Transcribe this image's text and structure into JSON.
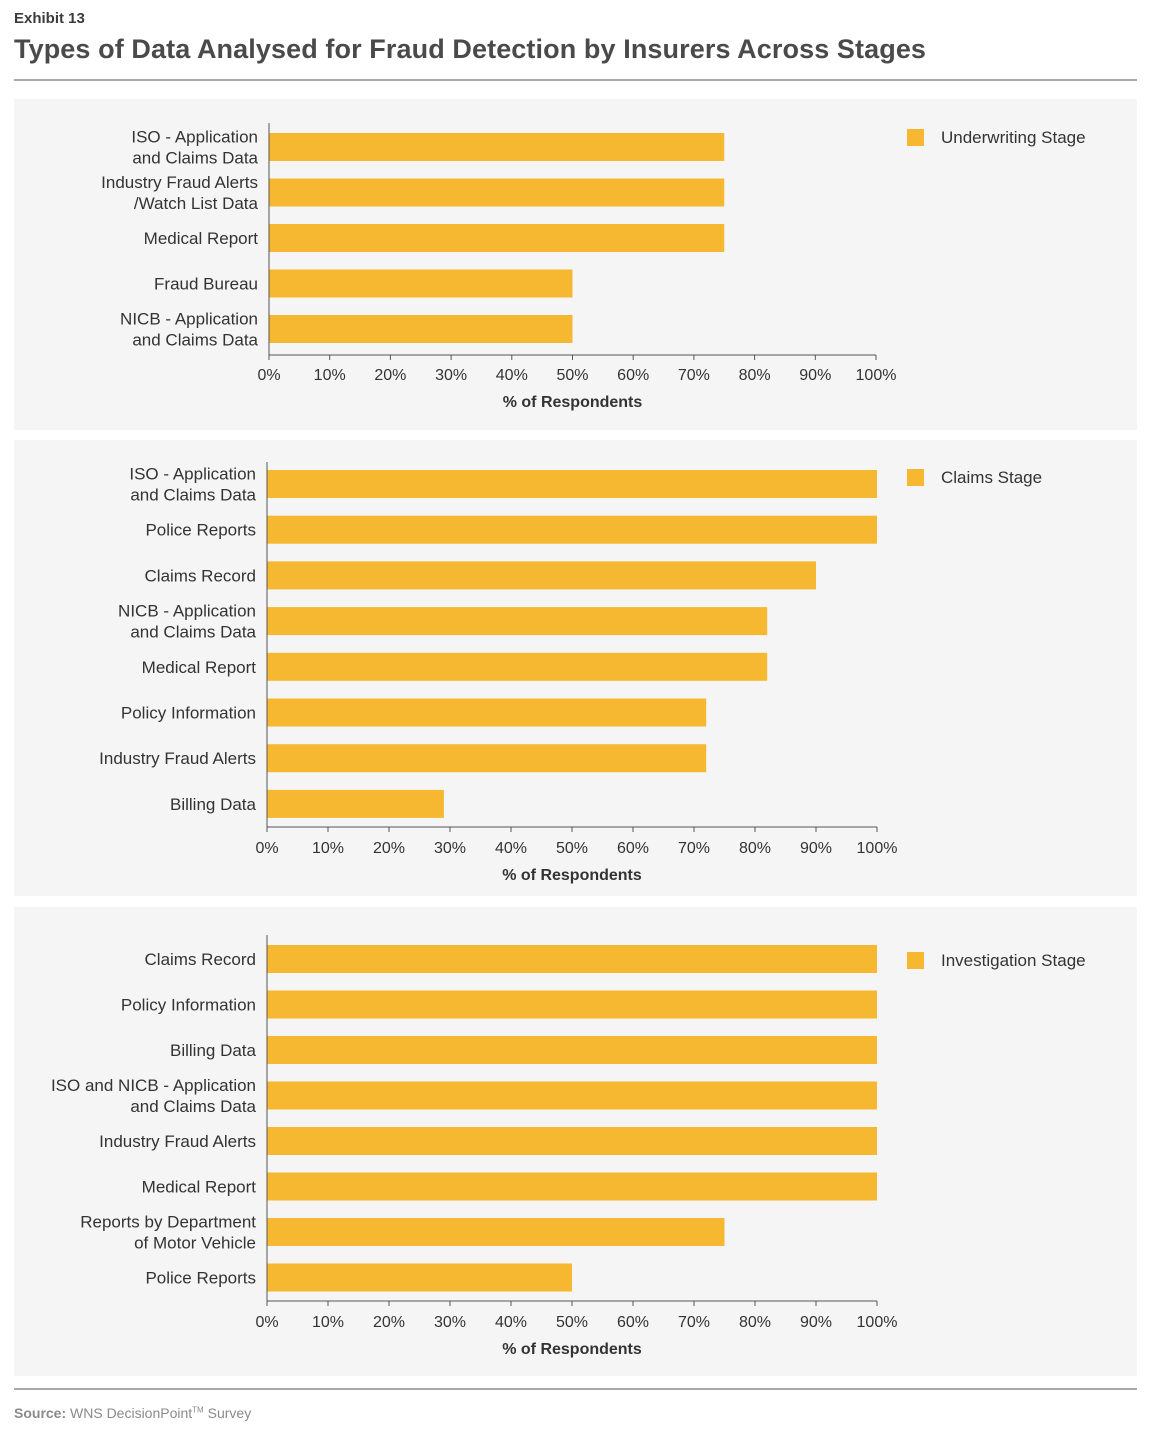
{
  "header": {
    "exhibit": "Exhibit 13",
    "title": "Types of Data Analysed for Fraud Detection by Insurers Across Stages"
  },
  "footer": {
    "source_label": "Source:",
    "source_text": "WNS DecisionPoint",
    "source_tm": "TM",
    "source_suffix": " Survey"
  },
  "colors": {
    "bar": "#F6B830",
    "panel": "#F5F5F5",
    "axis": "#555555"
  },
  "chart_data": [
    {
      "type": "bar",
      "orientation": "horizontal",
      "series": [
        {
          "name": "Underwriting Stage",
          "values": [
            75,
            75,
            75,
            50,
            50
          ]
        }
      ],
      "categories": [
        [
          "ISO - Application",
          "and Claims Data"
        ],
        [
          "Industry Fraud Alerts",
          "/Watch List Data"
        ],
        [
          "Medical Report"
        ],
        [
          "Fraud Bureau"
        ],
        [
          "NICB - Application",
          "and Claims Data"
        ]
      ],
      "xlabel": "% of Respondents",
      "xticks": [
        "0%",
        "10%",
        "20%",
        "30%",
        "40%",
        "50%",
        "60%",
        "70%",
        "80%",
        "90%",
        "100%"
      ],
      "xlim": [
        0,
        100
      ],
      "legend": "top-right"
    },
    {
      "type": "bar",
      "orientation": "horizontal",
      "series": [
        {
          "name": "Claims Stage",
          "values": [
            100,
            100,
            90,
            82,
            82,
            72,
            72,
            29
          ]
        }
      ],
      "categories": [
        [
          "ISO - Application",
          "and Claims Data"
        ],
        [
          "Police Reports"
        ],
        [
          "Claims Record"
        ],
        [
          "NICB - Application",
          "and Claims Data"
        ],
        [
          "Medical Report"
        ],
        [
          "Policy Information"
        ],
        [
          "Industry Fraud Alerts"
        ],
        [
          "Billing Data"
        ]
      ],
      "xlabel": "% of Respondents",
      "xticks": [
        "0%",
        "10%",
        "20%",
        "30%",
        "40%",
        "50%",
        "60%",
        "70%",
        "80%",
        "90%",
        "100%"
      ],
      "xlim": [
        0,
        100
      ],
      "legend": "top-right"
    },
    {
      "type": "bar",
      "orientation": "horizontal",
      "series": [
        {
          "name": "Investigation Stage",
          "values": [
            100,
            100,
            100,
            100,
            100,
            100,
            75,
            50
          ]
        }
      ],
      "categories": [
        [
          "Claims Record"
        ],
        [
          "Policy Information"
        ],
        [
          "Billing Data"
        ],
        [
          "ISO and NICB - Application",
          "and Claims Data"
        ],
        [
          "Industry Fraud Alerts"
        ],
        [
          "Medical Report"
        ],
        [
          "Reports by Department",
          "of Motor Vehicle"
        ],
        [
          "Police Reports"
        ]
      ],
      "xlabel": "% of Respondents",
      "xticks": [
        "0%",
        "10%",
        "20%",
        "30%",
        "40%",
        "50%",
        "60%",
        "70%",
        "80%",
        "90%",
        "100%"
      ],
      "xlim": [
        0,
        100
      ],
      "legend": "top-right"
    }
  ]
}
